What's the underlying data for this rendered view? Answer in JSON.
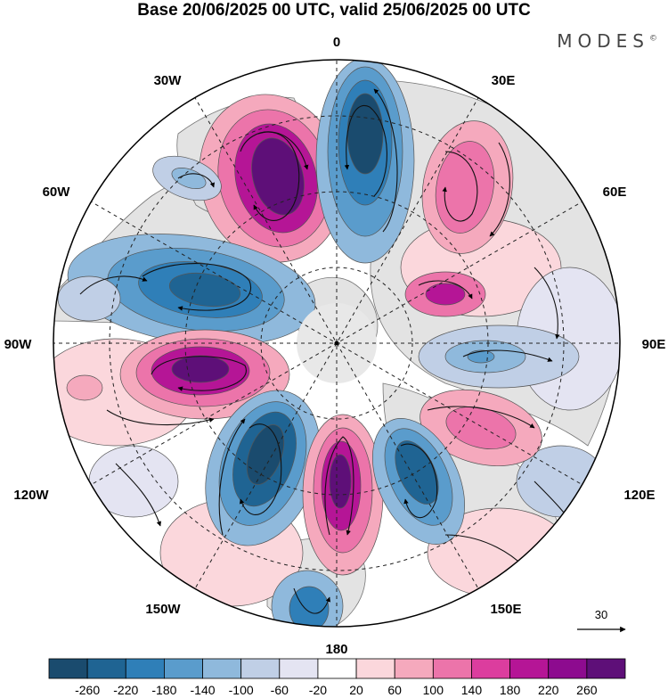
{
  "title": "Base 20/06/2025 00 UTC, valid 25/06/2025 00 UTC",
  "brand": "MODES",
  "brand_mark": "©",
  "longitude_labels": {
    "top": "0",
    "top_left": "30W",
    "top_right": "30E",
    "upper_left": "60W",
    "upper_right": "60E",
    "left": "90W",
    "right": "90E",
    "lower_left": "120W",
    "lower_right": "120E",
    "bottom_left": "150W",
    "bottom_right": "150E",
    "bottom": "180"
  },
  "reference_vector": {
    "label": "30"
  },
  "colorbar": {
    "tick_labels": [
      "-260",
      "-220",
      "-180",
      "-140",
      "-100",
      "-60",
      "-20",
      "20",
      "60",
      "100",
      "140",
      "180",
      "220",
      "260"
    ],
    "colors": [
      "#1a4b6e",
      "#1f6493",
      "#2f7fb8",
      "#5a9ccc",
      "#8fb9dc",
      "#c0cfe6",
      "#e4e4f2",
      "#ffffff",
      "#fbd7dc",
      "#f5a9bd",
      "#ec74aa",
      "#dc3d9e",
      "#b51596",
      "#8d0b8f",
      "#5e0f78"
    ]
  },
  "colors": {
    "land": "#dcdcdc",
    "ocean": "#ffffff"
  }
}
